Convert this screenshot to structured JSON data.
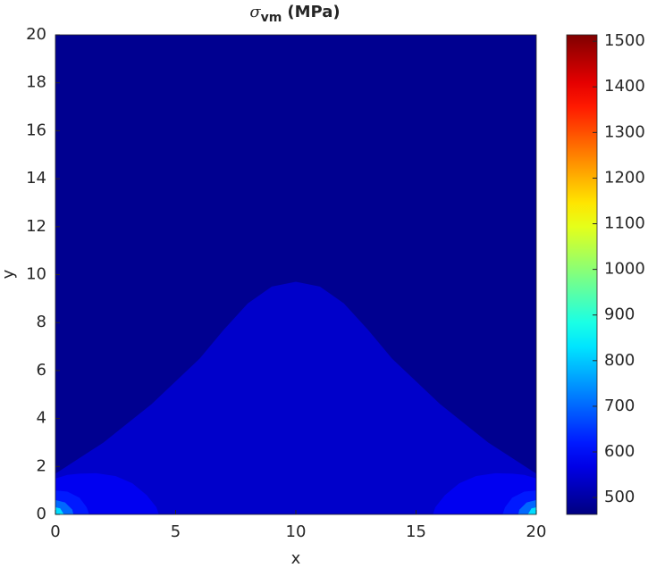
{
  "chart_data": {
    "type": "contourf",
    "title": "σ",
    "title_subscript": "vm",
    "title_suffix": "(MPa)",
    "xlabel": "x",
    "ylabel": "y",
    "xlim": [
      0,
      20
    ],
    "ylim": [
      0,
      20
    ],
    "xticks": [
      0,
      5,
      10,
      15,
      20
    ],
    "yticks": [
      0,
      2,
      4,
      6,
      8,
      10,
      12,
      14,
      16,
      18,
      20
    ],
    "colormap": "jet",
    "clim": [
      463,
      1514
    ],
    "cticks": [
      500,
      600,
      700,
      800,
      900,
      1000,
      1100,
      1200,
      1300,
      1400,
      1500
    ],
    "regions": [
      {
        "level": 480,
        "x": [
          0,
          20,
          20,
          0
        ],
        "y": [
          0,
          0,
          20,
          20
        ]
      },
      {
        "level": 540,
        "x": [
          0,
          0,
          2,
          4,
          6,
          7,
          8,
          9,
          10,
          11,
          12,
          13,
          14,
          16,
          18,
          20,
          20
        ],
        "y": [
          0,
          1.7,
          3.0,
          4.6,
          6.5,
          7.7,
          8.8,
          9.5,
          9.7,
          9.5,
          8.8,
          7.7,
          6.5,
          4.6,
          3.0,
          1.7,
          0
        ]
      },
      {
        "level": 580,
        "x": [
          0,
          0,
          0.5,
          1,
          1.7,
          2.5,
          3.2,
          3.8,
          4.2,
          4.3
        ],
        "y": [
          0,
          1.5,
          1.65,
          1.7,
          1.72,
          1.6,
          1.3,
          0.8,
          0.3,
          0
        ]
      },
      {
        "level": 580,
        "x": [
          20,
          20,
          19.5,
          19,
          18.3,
          17.5,
          16.8,
          16.2,
          15.8,
          15.7
        ],
        "y": [
          0,
          1.5,
          1.65,
          1.7,
          1.72,
          1.6,
          1.3,
          0.8,
          0.3,
          0
        ]
      },
      {
        "level": 620,
        "x": [
          0,
          0,
          0.5,
          1,
          1.3,
          1.4
        ],
        "y": [
          0,
          1.0,
          0.95,
          0.7,
          0.3,
          0
        ]
      },
      {
        "level": 620,
        "x": [
          20,
          20,
          19.5,
          19,
          18.7,
          18.6
        ],
        "y": [
          0,
          1.0,
          0.95,
          0.7,
          0.3,
          0
        ]
      },
      {
        "level": 700,
        "x": [
          0,
          0,
          0.4,
          0.7,
          0.75
        ],
        "y": [
          0,
          0.6,
          0.5,
          0.2,
          0
        ]
      },
      {
        "level": 700,
        "x": [
          20,
          20,
          19.6,
          19.3,
          19.25
        ],
        "y": [
          0,
          0.6,
          0.5,
          0.2,
          0
        ]
      },
      {
        "level": 820,
        "x": [
          0,
          0,
          0.2,
          0.35
        ],
        "y": [
          0,
          0.3,
          0.25,
          0
        ]
      },
      {
        "level": 820,
        "x": [
          20,
          20,
          19.8,
          19.65
        ],
        "y": [
          0,
          0.3,
          0.25,
          0
        ]
      }
    ]
  }
}
